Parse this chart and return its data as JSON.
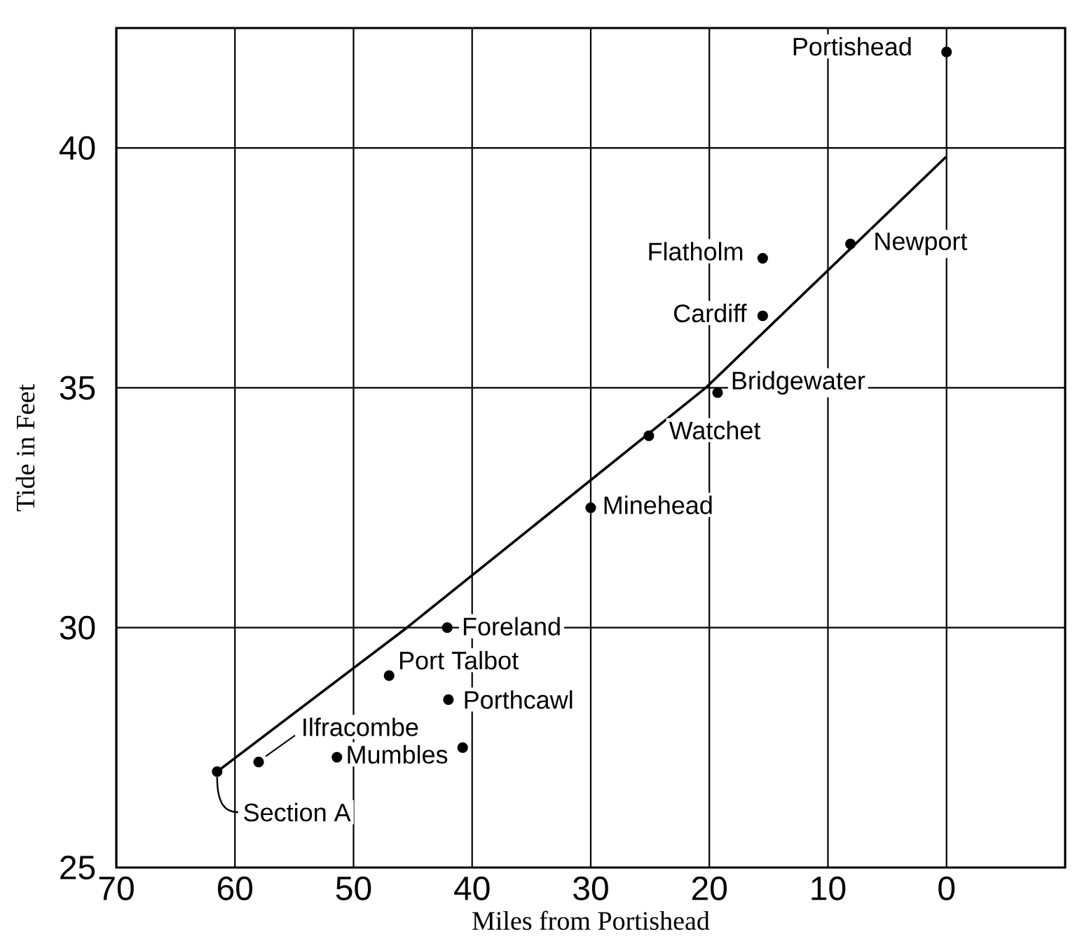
{
  "chart_data": {
    "type": "scatter",
    "xlabel": "Miles from Portishead",
    "ylabel": "Tide in Feet",
    "xlim": [
      70,
      -10
    ],
    "ylim": [
      25,
      42.5
    ],
    "xticks": [
      70,
      60,
      50,
      40,
      30,
      20,
      10,
      0
    ],
    "yticks": [
      25,
      30,
      35,
      40
    ],
    "grid": true,
    "series": [
      {
        "color": "#000000",
        "marker": "circle",
        "x": [
          0,
          8.1,
          15.5,
          15.5,
          19.3,
          25.1,
          30,
          42.1,
          47.0,
          42.0,
          40.8,
          51.4,
          58.0,
          61.5
        ],
        "values": [
          42.0,
          38.0,
          37.7,
          36.5,
          34.9,
          34.0,
          32.5,
          30.0,
          29.0,
          28.5,
          27.5,
          27.3,
          27.2,
          27.0
        ]
      },
      {
        "type": "line",
        "color": "#000000",
        "x": [
          61.5,
          45.5,
          20.3,
          0.1
        ],
        "values": [
          27.0,
          30.0,
          35.0,
          39.8
        ]
      }
    ],
    "annotations": [
      {
        "text": "Portishead",
        "x": 0,
        "y": 42.0
      },
      {
        "text": "Newport",
        "x": 8.1,
        "y": 38.0
      },
      {
        "text": "Flatholm",
        "x": 15.5,
        "y": 37.7
      },
      {
        "text": "Cardiff",
        "x": 15.5,
        "y": 36.5
      },
      {
        "text": "Bridgewater",
        "x": 19.3,
        "y": 34.9
      },
      {
        "text": "Watchet",
        "x": 25.1,
        "y": 34.0
      },
      {
        "text": "Minehead",
        "x": 30,
        "y": 32.5
      },
      {
        "text": "Foreland",
        "x": 42.1,
        "y": 30.0
      },
      {
        "text": "Port Talbot",
        "x": 47.0,
        "y": 29.0
      },
      {
        "text": "Porthcawl",
        "x": 42.0,
        "y": 28.5
      },
      {
        "text": "Mumbles",
        "x": 51.4,
        "y": 27.3
      },
      {
        "text": "Ilfracombe",
        "x": 58.0,
        "y": 27.2
      },
      {
        "text": "Section A",
        "x": 61.5,
        "y": 27.0
      }
    ]
  }
}
